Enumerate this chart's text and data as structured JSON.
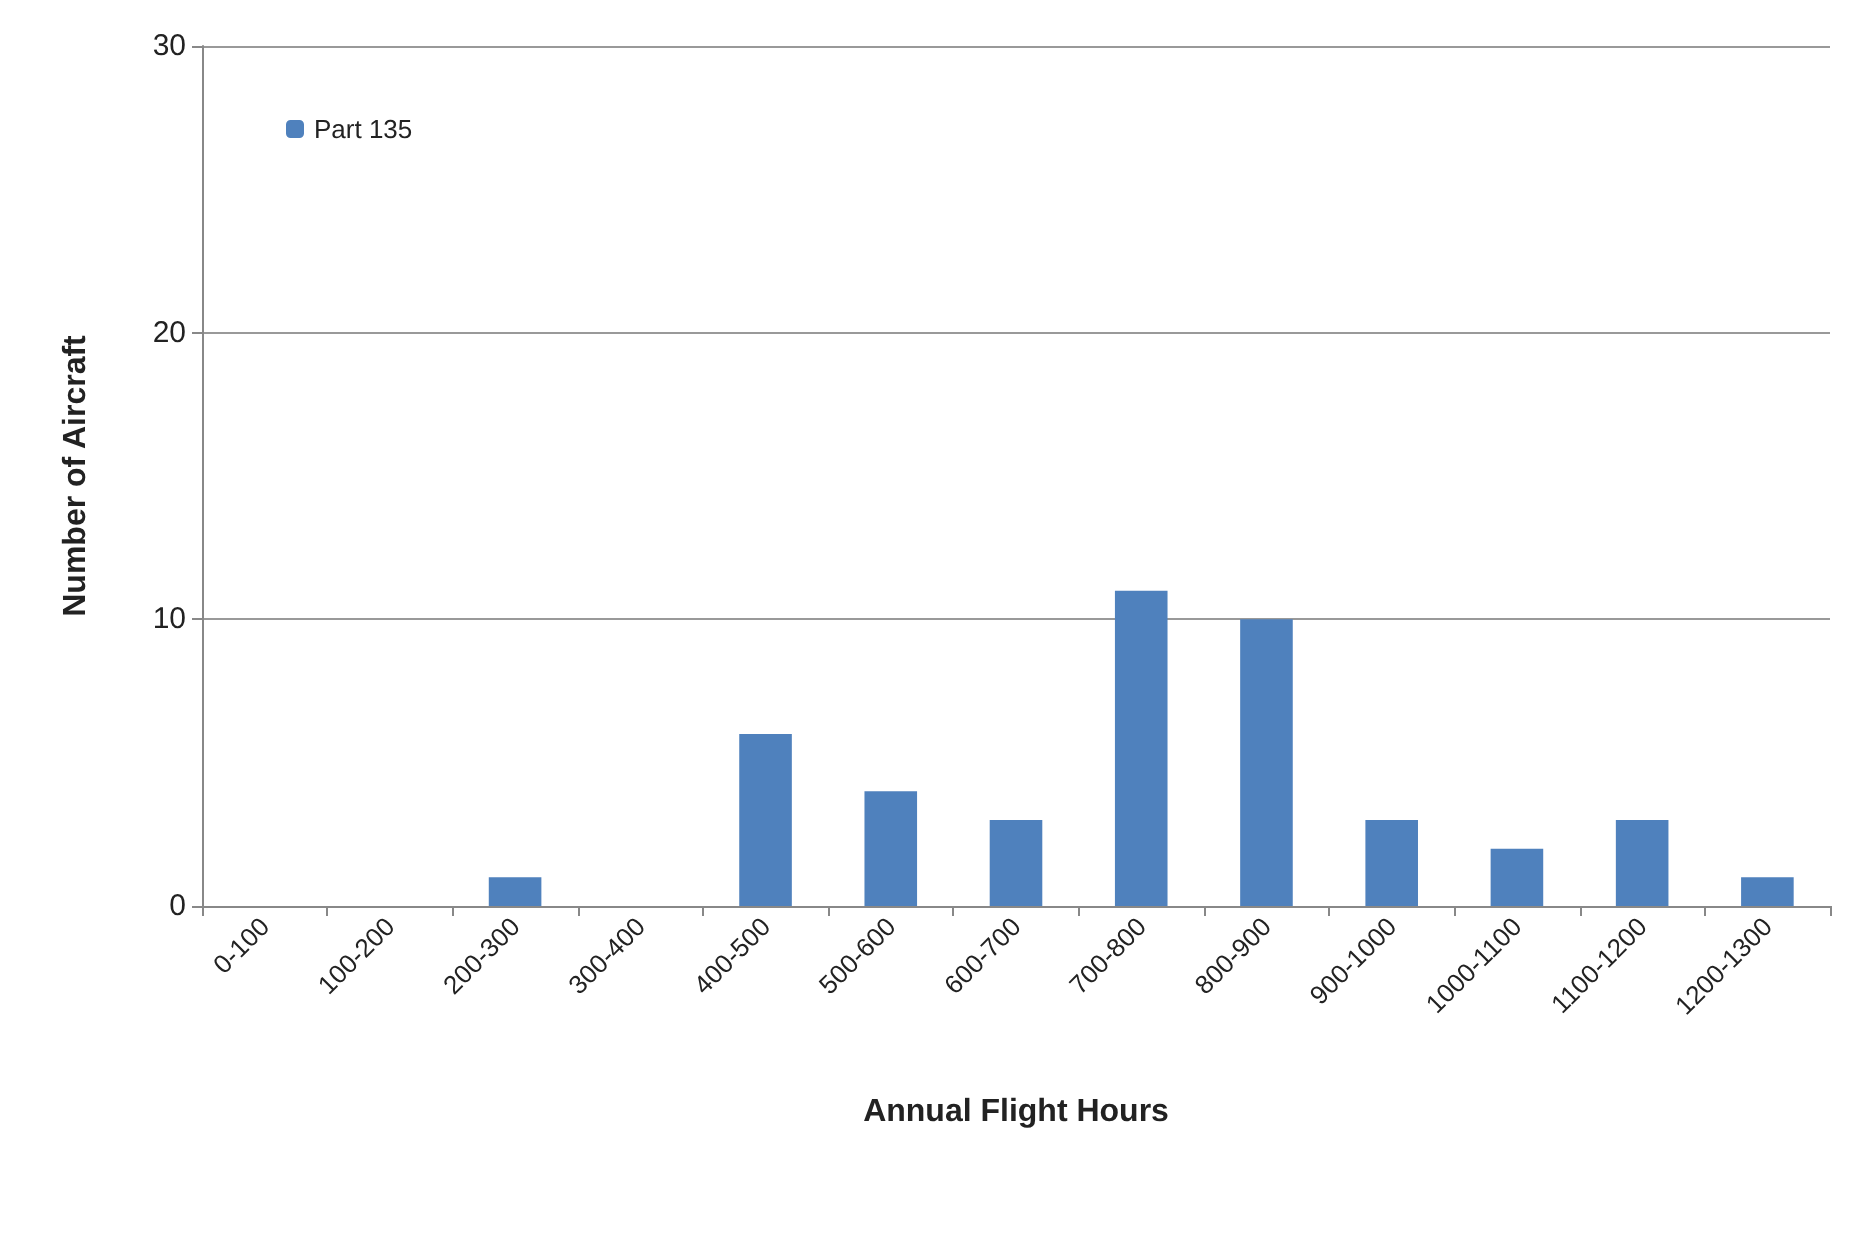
{
  "chart_data": {
    "type": "bar",
    "xlabel": "Annual Flight Hours",
    "ylabel": "Number of Aircraft",
    "categories": [
      "0-100",
      "100-200",
      "200-300",
      "300-400",
      "400-500",
      "500-600",
      "600-700",
      "700-800",
      "800-900",
      "900-1000",
      "1000-1100",
      "1100-1200",
      "1200-1300"
    ],
    "series": [
      {
        "name": "Part 135",
        "color": "#4f81bd",
        "values": [
          0,
          0,
          1,
          0,
          6,
          4,
          3,
          11,
          10,
          3,
          2,
          3,
          1
        ]
      }
    ],
    "ylim": [
      0,
      30
    ],
    "yticks": [
      0,
      10,
      20,
      30
    ],
    "grid": "y",
    "legend": "top left"
  }
}
